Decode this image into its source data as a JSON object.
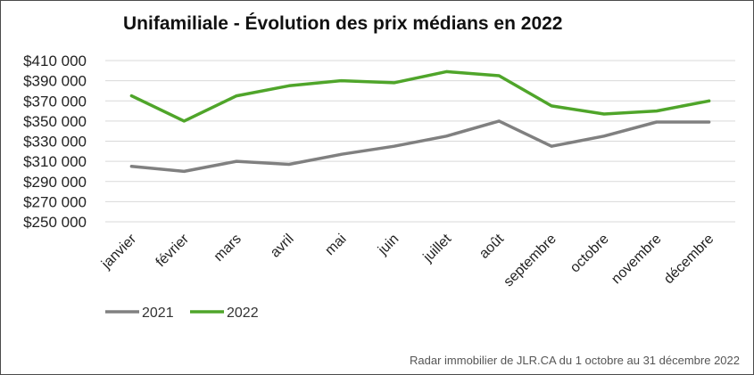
{
  "chart_data": {
    "type": "line",
    "title": "Unifamiliale - Évolution des prix médians en 2022",
    "categories": [
      "janvier",
      "février",
      "mars",
      "avril",
      "mai",
      "juin",
      "juillet",
      "août",
      "septembre",
      "octobre",
      "novembre",
      "décembre"
    ],
    "series": [
      {
        "name": "2021",
        "color": "#808080",
        "values": [
          305000,
          300000,
          310000,
          307000,
          317000,
          325000,
          335000,
          350000,
          325000,
          335000,
          349000,
          349000
        ]
      },
      {
        "name": "2022",
        "color": "#4fa52a",
        "values": [
          375000,
          350000,
          375000,
          385000,
          390000,
          388000,
          399000,
          395000,
          365000,
          357000,
          360000,
          370000
        ]
      }
    ],
    "y_ticks": [
      "$410 000",
      "$390 000",
      "$370 000",
      "$350 000",
      "$330 000",
      "$310 000",
      "$290 000",
      "$270 000",
      "$250 000"
    ],
    "ylim": [
      250000,
      410000
    ],
    "grid": true,
    "legend_position": "bottom-left",
    "source": "Radar immobilier de JLR.CA du 1 octobre au 31 décembre 2022"
  }
}
